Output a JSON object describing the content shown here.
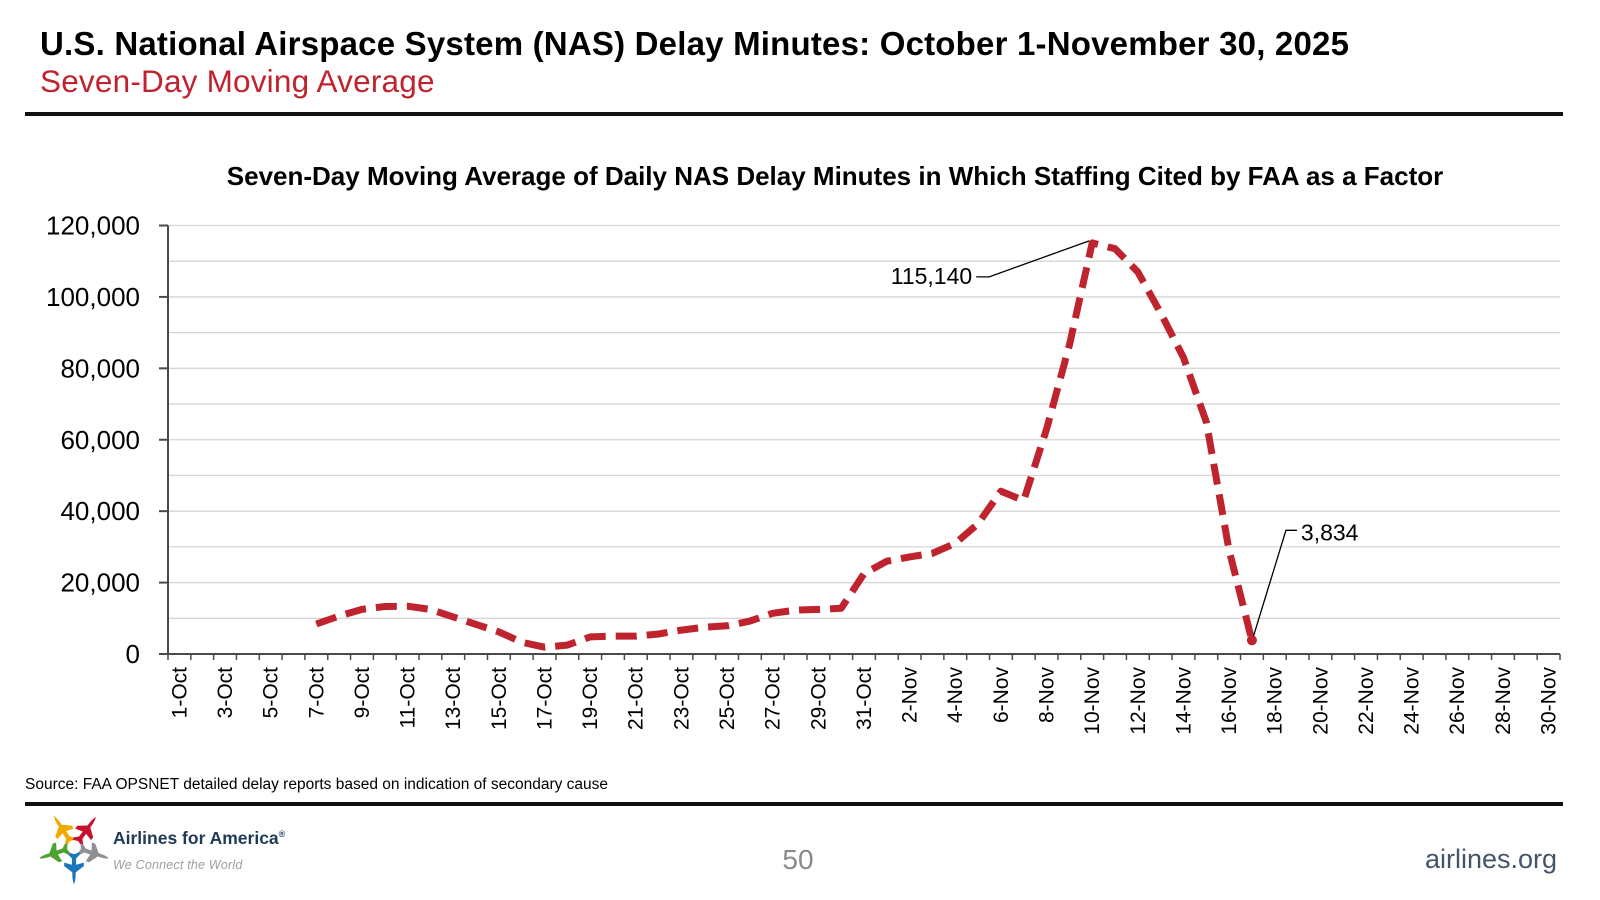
{
  "header": {
    "title": "U.S. National Airspace System (NAS) Delay Minutes: October 1-November 30, 2025",
    "subtitle": "Seven-Day Moving Average"
  },
  "chart_data": {
    "type": "line",
    "title": "Seven-Day Moving Average of Daily NAS Delay Minutes in Which Staffing Cited by FAA as a Factor",
    "categories": [
      "1-Oct",
      "2-Oct",
      "3-Oct",
      "4-Oct",
      "5-Oct",
      "6-Oct",
      "7-Oct",
      "8-Oct",
      "9-Oct",
      "10-Oct",
      "11-Oct",
      "12-Oct",
      "13-Oct",
      "14-Oct",
      "15-Oct",
      "16-Oct",
      "17-Oct",
      "18-Oct",
      "19-Oct",
      "20-Oct",
      "21-Oct",
      "22-Oct",
      "23-Oct",
      "24-Oct",
      "25-Oct",
      "26-Oct",
      "27-Oct",
      "28-Oct",
      "29-Oct",
      "30-Oct",
      "31-Oct",
      "1-Nov",
      "2-Nov",
      "3-Nov",
      "4-Nov",
      "5-Nov",
      "6-Nov",
      "7-Nov",
      "8-Nov",
      "9-Nov",
      "10-Nov",
      "11-Nov",
      "12-Nov",
      "13-Nov",
      "14-Nov",
      "15-Nov",
      "16-Nov",
      "17-Nov",
      "18-Nov",
      "19-Nov",
      "20-Nov",
      "21-Nov",
      "22-Nov",
      "23-Nov",
      "24-Nov",
      "25-Nov",
      "26-Nov",
      "27-Nov",
      "28-Nov",
      "29-Nov",
      "30-Nov"
    ],
    "values": [
      null,
      null,
      null,
      null,
      null,
      null,
      8400,
      10600,
      12500,
      13300,
      13400,
      12500,
      10400,
      8300,
      6200,
      3300,
      1900,
      2500,
      4800,
      5000,
      5000,
      5600,
      6700,
      7500,
      7900,
      9200,
      11400,
      12300,
      12500,
      12800,
      22500,
      26000,
      27200,
      28200,
      31000,
      36500,
      45600,
      43000,
      63000,
      86500,
      115140,
      113500,
      107000,
      95500,
      83000,
      65000,
      29000,
      3834,
      null,
      null,
      null,
      null,
      null,
      null,
      null,
      null,
      null,
      null,
      null,
      null,
      null
    ],
    "ylim": [
      0,
      120000
    ],
    "ytick_step": 20000,
    "gridline_step": 10000,
    "x_label_every": 2,
    "line_color": "#BE232E",
    "line_style": "dashed",
    "grid": true,
    "legend": "none",
    "annotations": [
      {
        "text": "115,140",
        "index": 40,
        "side": "left"
      },
      {
        "text": "3,834",
        "index": 47,
        "side": "right",
        "marker": true
      }
    ]
  },
  "footer": {
    "source": "Source: FAA OPSNET detailed delay reports based on indication of secondary cause",
    "logo_title": "Airlines for America",
    "logo_reg": "®",
    "logo_tagline": "We Connect the World",
    "page_number": "50",
    "website": "airlines.org"
  },
  "logo_colors": {
    "yellow": "#F2A900",
    "red": "#C8102E",
    "gray": "#8E9093",
    "blue": "#1B75BB",
    "green": "#4CA32F"
  }
}
